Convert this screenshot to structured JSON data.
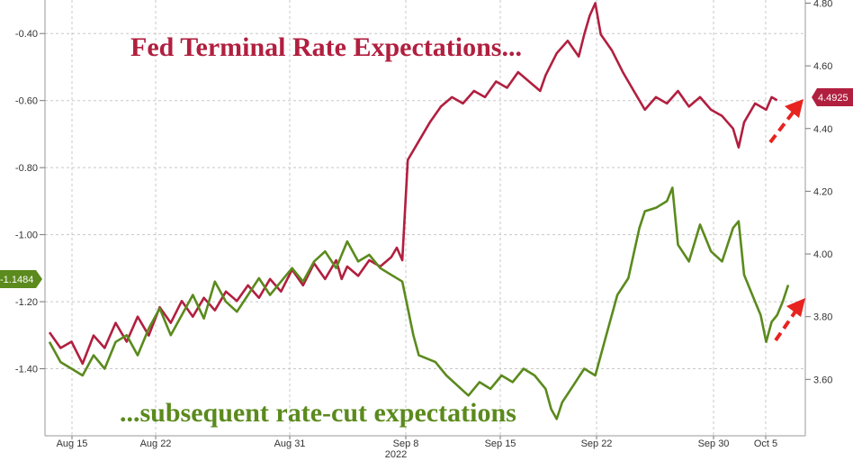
{
  "chart_data": {
    "type": "line",
    "title": "Fed Terminal Rate Expectations...",
    "subtitle": "...subsequent rate-cut expectations",
    "x_ticks": [
      "Aug 15",
      "Aug 22",
      "Aug 31",
      "Sep 8",
      "Sep 15",
      "Sep 22",
      "Sep 30",
      "Oct 5"
    ],
    "x_year": "2022",
    "left_axis": {
      "ticks": [
        "-0.40",
        "-0.60",
        "-0.80",
        "-1.00",
        "-1.20",
        "-1.40"
      ],
      "values": [
        -0.4,
        -0.6,
        -0.8,
        -1.0,
        -1.2,
        -1.4
      ],
      "range": [
        -1.6,
        -0.3
      ]
    },
    "right_axis": {
      "ticks": [
        "4.80",
        "4.60",
        "4.40",
        "4.20",
        "4.00",
        "3.80",
        "3.60"
      ],
      "values": [
        4.8,
        4.6,
        4.4,
        4.2,
        4.0,
        3.8,
        3.6
      ],
      "range": [
        3.42,
        4.81
      ]
    },
    "grid": true,
    "series": [
      {
        "axis": "right",
        "color": "#b11f3f",
        "last_value_label": "4.4925",
        "points": [
          [
            0,
            3.75
          ],
          [
            2,
            3.7
          ],
          [
            4,
            3.72
          ],
          [
            6,
            3.65
          ],
          [
            8,
            3.74
          ],
          [
            10,
            3.7
          ],
          [
            12,
            3.78
          ],
          [
            14,
            3.72
          ],
          [
            16,
            3.8
          ],
          [
            18,
            3.74
          ],
          [
            20,
            3.83
          ],
          [
            22,
            3.78
          ],
          [
            24,
            3.85
          ],
          [
            26,
            3.8
          ],
          [
            28,
            3.86
          ],
          [
            30,
            3.82
          ],
          [
            32,
            3.88
          ],
          [
            34,
            3.85
          ],
          [
            36,
            3.9
          ],
          [
            38,
            3.86
          ],
          [
            40,
            3.92
          ],
          [
            42,
            3.88
          ],
          [
            44,
            3.95
          ],
          [
            46,
            3.9
          ],
          [
            48,
            3.97
          ],
          [
            50,
            3.92
          ],
          [
            52,
            3.98
          ],
          [
            53,
            3.92
          ],
          [
            54,
            3.96
          ],
          [
            56,
            3.93
          ],
          [
            58,
            3.98
          ],
          [
            60,
            3.96
          ],
          [
            62,
            3.99
          ],
          [
            63,
            4.02
          ],
          [
            64,
            3.98
          ],
          [
            65,
            4.3
          ],
          [
            67,
            4.36
          ],
          [
            69,
            4.42
          ],
          [
            71,
            4.47
          ],
          [
            73,
            4.5
          ],
          [
            75,
            4.48
          ],
          [
            77,
            4.52
          ],
          [
            79,
            4.5
          ],
          [
            81,
            4.55
          ],
          [
            83,
            4.53
          ],
          [
            85,
            4.58
          ],
          [
            87,
            4.55
          ],
          [
            89,
            4.52
          ],
          [
            90,
            4.57
          ],
          [
            92,
            4.64
          ],
          [
            94,
            4.68
          ],
          [
            96,
            4.63
          ],
          [
            97,
            4.7
          ],
          [
            98,
            4.76
          ],
          [
            99,
            4.8
          ],
          [
            100,
            4.7
          ],
          [
            102,
            4.65
          ],
          [
            104,
            4.58
          ],
          [
            106,
            4.52
          ],
          [
            108,
            4.46
          ],
          [
            110,
            4.5
          ],
          [
            112,
            4.48
          ],
          [
            114,
            4.52
          ],
          [
            116,
            4.47
          ],
          [
            118,
            4.5
          ],
          [
            120,
            4.46
          ],
          [
            122,
            4.44
          ],
          [
            124,
            4.4
          ],
          [
            125,
            4.34
          ],
          [
            126,
            4.42
          ],
          [
            128,
            4.48
          ],
          [
            130,
            4.46
          ],
          [
            131,
            4.5
          ],
          [
            132,
            4.49
          ]
        ]
      },
      {
        "axis": "left",
        "color": "#5b8a1d",
        "last_value_label": "-1.1484",
        "points": [
          [
            0,
            -1.32
          ],
          [
            2,
            -1.38
          ],
          [
            4,
            -1.4
          ],
          [
            6,
            -1.42
          ],
          [
            8,
            -1.36
          ],
          [
            10,
            -1.4
          ],
          [
            12,
            -1.32
          ],
          [
            14,
            -1.3
          ],
          [
            16,
            -1.36
          ],
          [
            18,
            -1.28
          ],
          [
            20,
            -1.22
          ],
          [
            22,
            -1.3
          ],
          [
            24,
            -1.24
          ],
          [
            26,
            -1.18
          ],
          [
            28,
            -1.25
          ],
          [
            30,
            -1.14
          ],
          [
            32,
            -1.2
          ],
          [
            34,
            -1.23
          ],
          [
            36,
            -1.18
          ],
          [
            38,
            -1.13
          ],
          [
            40,
            -1.18
          ],
          [
            42,
            -1.14
          ],
          [
            44,
            -1.1
          ],
          [
            46,
            -1.14
          ],
          [
            48,
            -1.08
          ],
          [
            50,
            -1.05
          ],
          [
            52,
            -1.1
          ],
          [
            54,
            -1.02
          ],
          [
            56,
            -1.08
          ],
          [
            58,
            -1.06
          ],
          [
            60,
            -1.1
          ],
          [
            62,
            -1.12
          ],
          [
            64,
            -1.14
          ],
          [
            66,
            -1.3
          ],
          [
            67,
            -1.36
          ],
          [
            70,
            -1.38
          ],
          [
            72,
            -1.42
          ],
          [
            74,
            -1.45
          ],
          [
            76,
            -1.48
          ],
          [
            78,
            -1.44
          ],
          [
            80,
            -1.46
          ],
          [
            82,
            -1.42
          ],
          [
            84,
            -1.44
          ],
          [
            86,
            -1.4
          ],
          [
            88,
            -1.42
          ],
          [
            90,
            -1.46
          ],
          [
            91,
            -1.52
          ],
          [
            92,
            -1.55
          ],
          [
            93,
            -1.5
          ],
          [
            95,
            -1.45
          ],
          [
            97,
            -1.4
          ],
          [
            99,
            -1.42
          ],
          [
            101,
            -1.3
          ],
          [
            103,
            -1.18
          ],
          [
            105,
            -1.13
          ],
          [
            107,
            -0.98
          ],
          [
            108,
            -0.93
          ],
          [
            110,
            -0.92
          ],
          [
            112,
            -0.9
          ],
          [
            113,
            -0.86
          ],
          [
            114,
            -1.03
          ],
          [
            116,
            -1.08
          ],
          [
            118,
            -0.97
          ],
          [
            120,
            -1.05
          ],
          [
            122,
            -1.08
          ],
          [
            124,
            -0.98
          ],
          [
            125,
            -0.96
          ],
          [
            126,
            -1.12
          ],
          [
            128,
            -1.2
          ],
          [
            129,
            -1.24
          ],
          [
            130,
            -1.32
          ],
          [
            131,
            -1.26
          ],
          [
            132,
            -1.24
          ],
          [
            133,
            -1.2
          ],
          [
            134,
            -1.15
          ]
        ]
      }
    ]
  }
}
